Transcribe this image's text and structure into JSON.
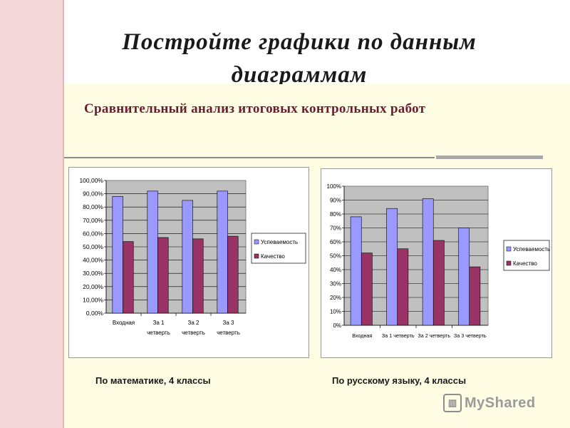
{
  "slide": {
    "title_line1": "Постройте графики по данным",
    "title_line2": "диаграммам",
    "subtitle": "Сравнительный анализ итоговых контрольных работ",
    "caption_left": "По математике, 4 классы",
    "caption_right": "По русскому языку, 4 классы",
    "brand": "MyShared",
    "brand_icon": "presentation-icon"
  },
  "colors": {
    "series1": "#9999ff",
    "series2": "#993366",
    "plot_bg": "#c0c0c0",
    "stripe": "#f3d7d9",
    "background": "#fefce2"
  },
  "chart_data": [
    {
      "type": "bar",
      "title": "",
      "categories": [
        "Входная",
        "За 1 четверть",
        "За 2 четверть",
        "За 3 четверть"
      ],
      "series": [
        {
          "name": "Успеваемость",
          "values": [
            88,
            92,
            85,
            92
          ]
        },
        {
          "name": "Качество",
          "values": [
            54,
            57,
            56,
            58
          ]
        }
      ],
      "yticks": [
        "0,00%",
        "10,00%",
        "20,00%",
        "30,00%",
        "40,00%",
        "50,00%",
        "60,00%",
        "70,00%",
        "80,00%",
        "90,00%",
        "100,00%"
      ],
      "ylim": [
        0,
        100
      ],
      "grid": true,
      "legend": "right"
    },
    {
      "type": "bar",
      "title": "",
      "categories": [
        "Входная",
        "За 1 четверть",
        "За 2 четверть",
        "За 3 четверть"
      ],
      "series": [
        {
          "name": "Успеваемость",
          "values": [
            78,
            84,
            91,
            70
          ]
        },
        {
          "name": "Качество",
          "values": [
            52,
            55,
            61,
            42
          ]
        }
      ],
      "yticks": [
        "0%",
        "10%",
        "20%",
        "30%",
        "40%",
        "50%",
        "60%",
        "70%",
        "80%",
        "90%",
        "100%"
      ],
      "ylim": [
        0,
        100
      ],
      "grid": true,
      "legend": "right"
    }
  ]
}
